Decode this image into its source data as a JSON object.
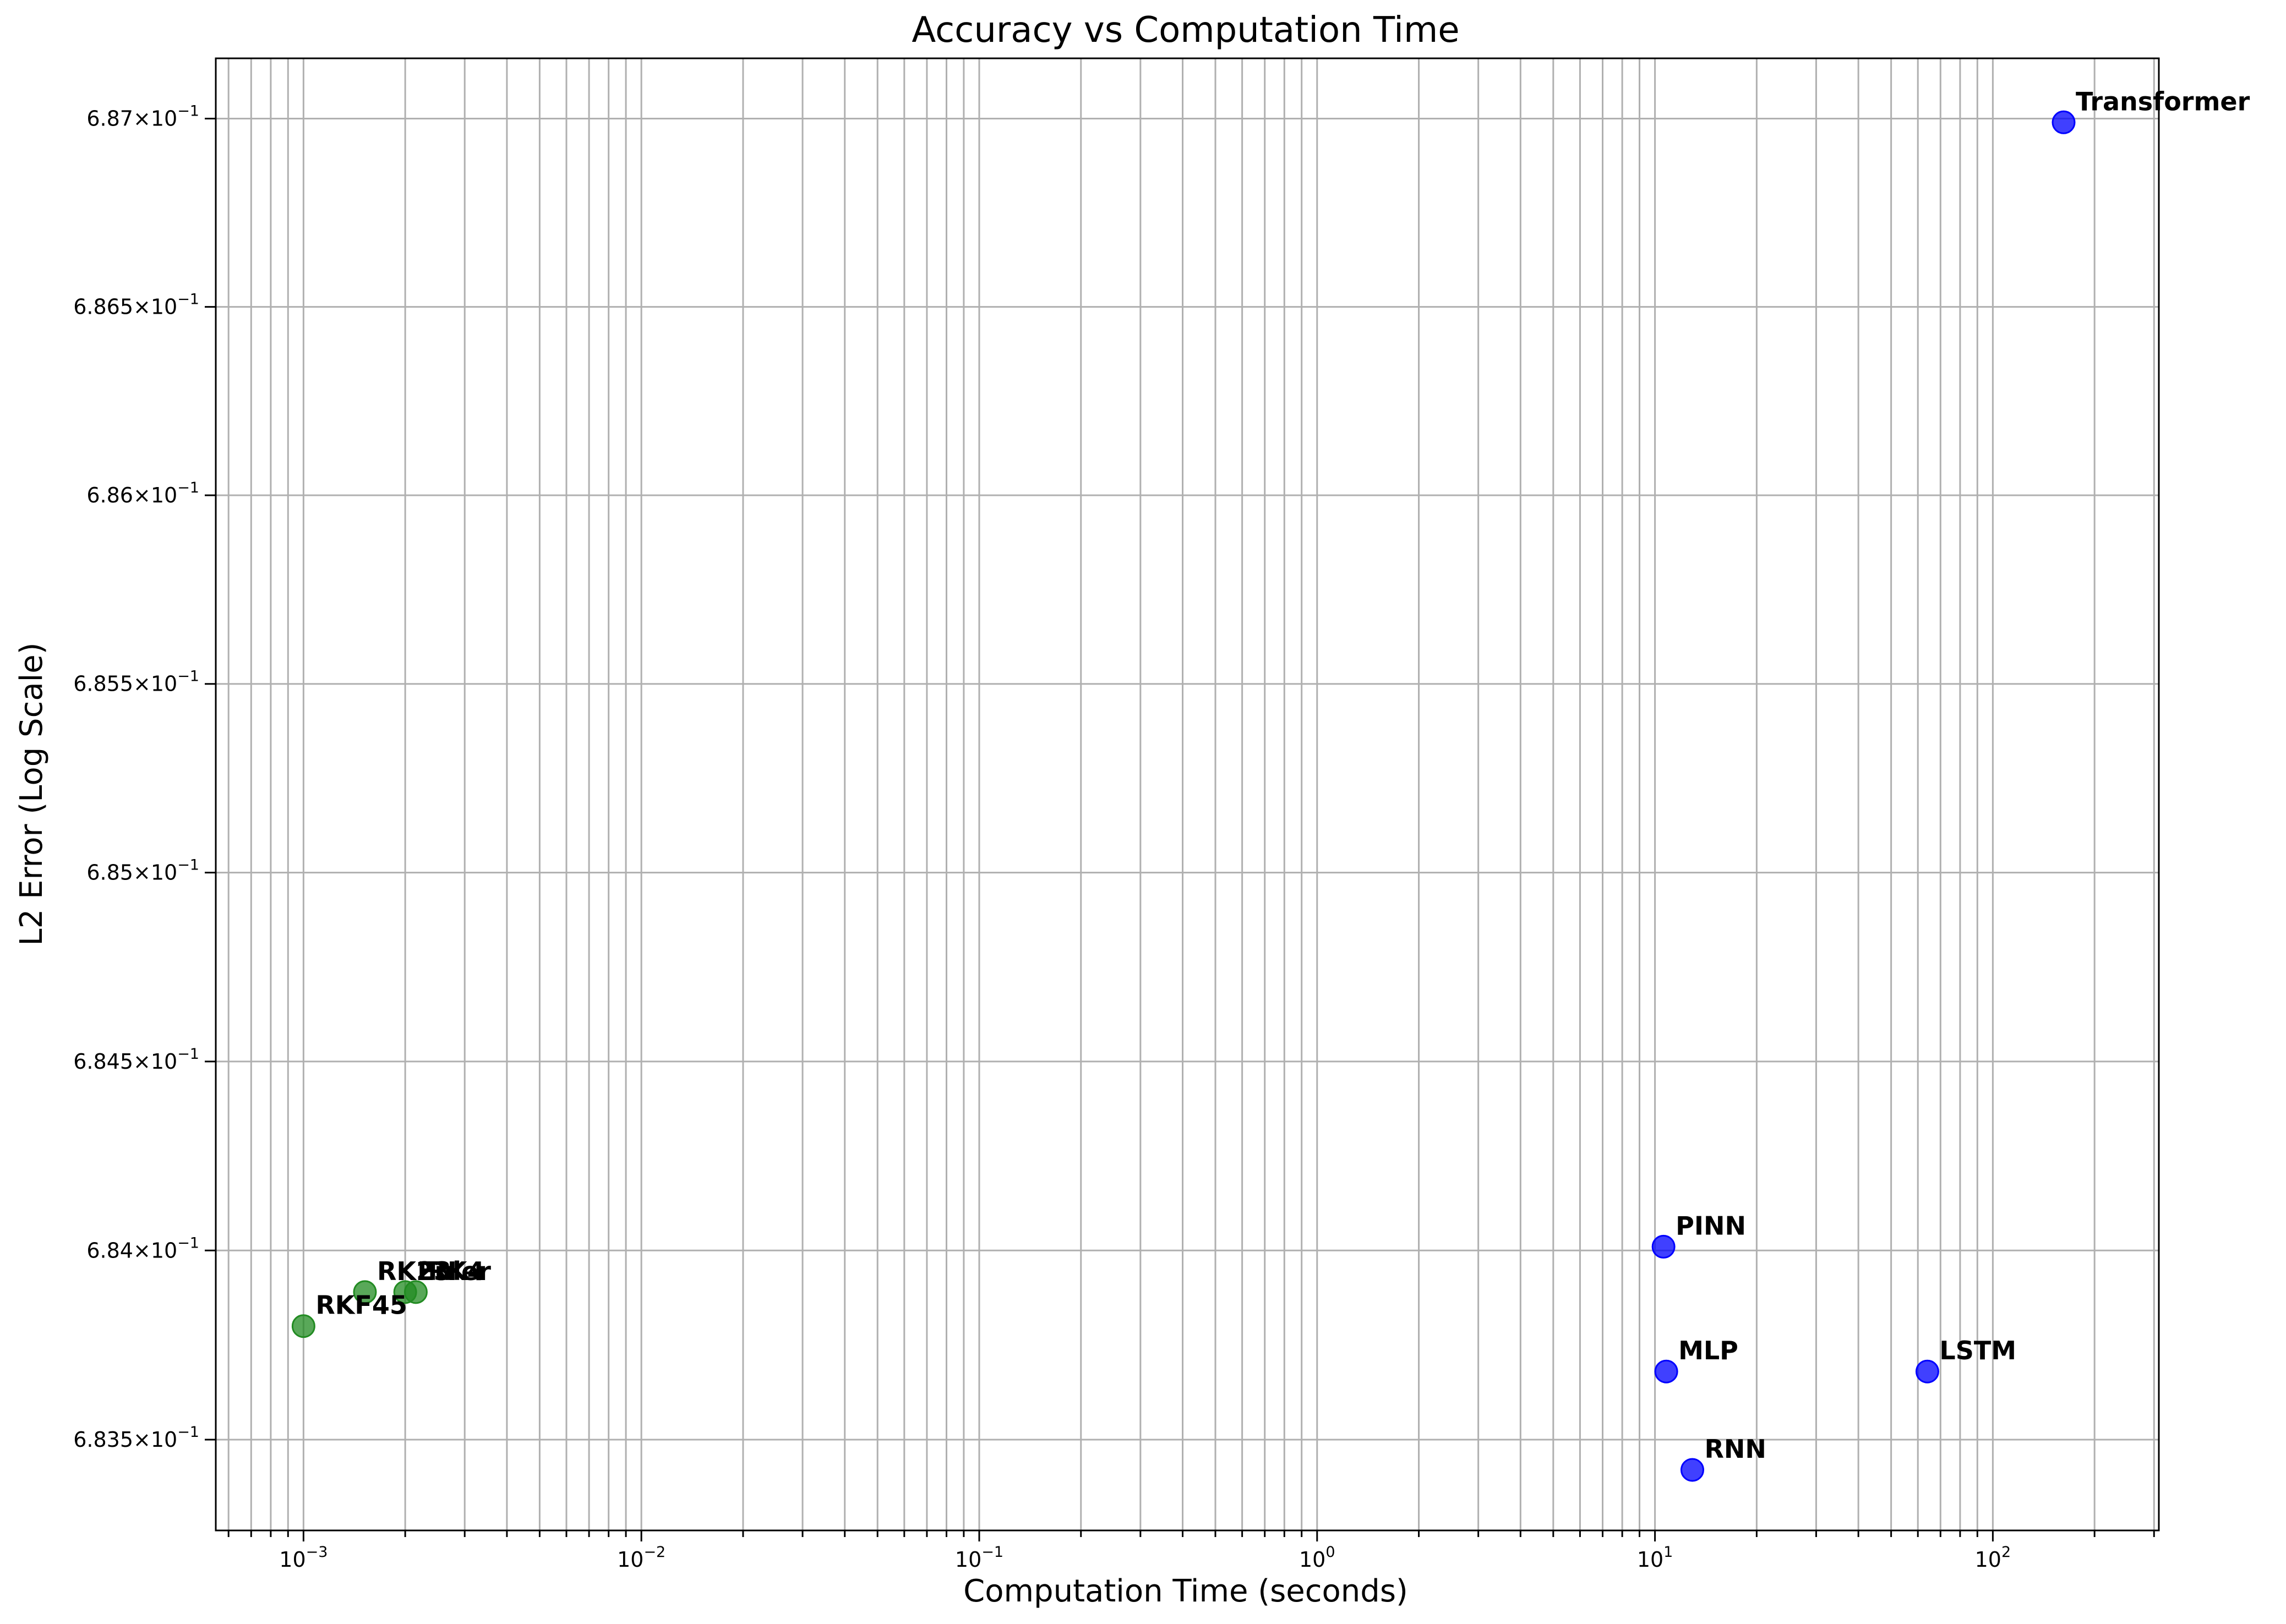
{
  "chart_data": {
    "type": "scatter",
    "title": "Accuracy vs Computation Time",
    "xlabel": "Computation Time (seconds)",
    "ylabel": "L2 Error (Log Scale)",
    "xscale": "log",
    "yscale": "log",
    "xlim": [
      0.00055,
      310
    ],
    "ylim": [
      0.68326,
      0.68716
    ],
    "grid": true,
    "x_ticks": [
      {
        "value": 0.001,
        "base": "10",
        "exp": "−3"
      },
      {
        "value": 0.01,
        "base": "10",
        "exp": "−2"
      },
      {
        "value": 0.1,
        "base": "10",
        "exp": "−1"
      },
      {
        "value": 1,
        "base": "10",
        "exp": "0"
      },
      {
        "value": 10,
        "base": "10",
        "exp": "1"
      },
      {
        "value": 100,
        "base": "10",
        "exp": "2"
      }
    ],
    "y_ticks": [
      {
        "value": 0.6835,
        "mant": "6.835",
        "times": "×",
        "base": "10",
        "exp": "−1"
      },
      {
        "value": 0.684,
        "mant": "6.84",
        "times": "×",
        "base": "10",
        "exp": "−1"
      },
      {
        "value": 0.6845,
        "mant": "6.845",
        "times": "×",
        "base": "10",
        "exp": "−1"
      },
      {
        "value": 0.685,
        "mant": "6.85",
        "times": "×",
        "base": "10",
        "exp": "−1"
      },
      {
        "value": 0.6855,
        "mant": "6.855",
        "times": "×",
        "base": "10",
        "exp": "−1"
      },
      {
        "value": 0.686,
        "mant": "6.86",
        "times": "×",
        "base": "10",
        "exp": "−1"
      },
      {
        "value": 0.6865,
        "mant": "6.865",
        "times": "×",
        "base": "10",
        "exp": "−1"
      },
      {
        "value": 0.687,
        "mant": "6.87",
        "times": "×",
        "base": "10",
        "exp": "−1"
      }
    ],
    "points": [
      {
        "label": "RKF45",
        "x": 0.001,
        "y": 0.6838,
        "color": "#228b22"
      },
      {
        "label": "RK23",
        "x": 0.00152,
        "y": 0.68389,
        "color": "#228b22"
      },
      {
        "label": "RK4",
        "x": 0.00215,
        "y": 0.68389,
        "color": "#228b22"
      },
      {
        "label": "Euler",
        "x": 0.002,
        "y": 0.68389,
        "color": "#228b22"
      },
      {
        "label": "PINN",
        "x": 10.6,
        "y": 0.68401,
        "color": "#0000ff"
      },
      {
        "label": "MLP",
        "x": 10.8,
        "y": 0.68368,
        "color": "#0000ff"
      },
      {
        "label": "LSTM",
        "x": 64,
        "y": 0.68368,
        "color": "#0000ff"
      },
      {
        "label": "RNN",
        "x": 12.9,
        "y": 0.68342,
        "color": "#0000ff"
      },
      {
        "label": "Transformer",
        "x": 162,
        "y": 0.68699,
        "color": "#0000ff"
      }
    ]
  }
}
